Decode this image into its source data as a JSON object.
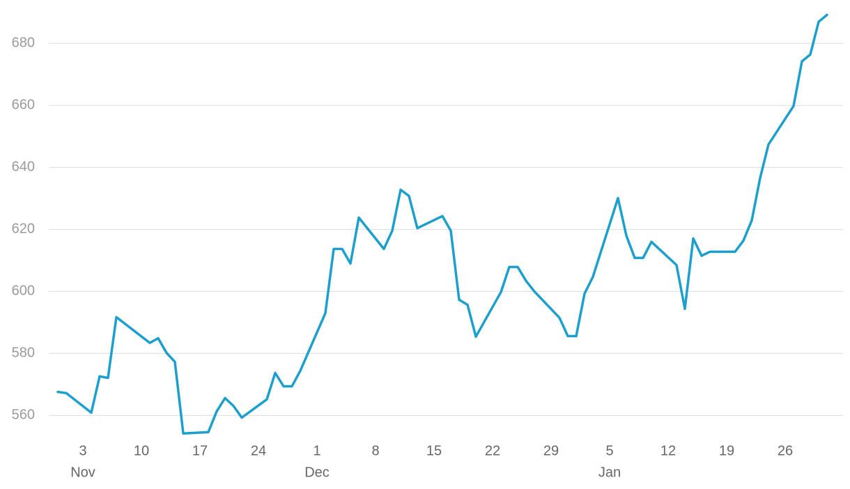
{
  "chart_data": {
    "type": "line",
    "x": [
      "Oct 31",
      "Nov 1",
      "Nov 4",
      "Nov 5",
      "Nov 6",
      "Nov 7",
      "Nov 11",
      "Nov 12",
      "Nov 13",
      "Nov 14",
      "Nov 15",
      "Nov 18",
      "Nov 19",
      "Nov 20",
      "Nov 21",
      "Nov 22",
      "Nov 25",
      "Nov 26",
      "Nov 27",
      "Nov 28",
      "Nov 29",
      "Dec 2",
      "Dec 3",
      "Dec 4",
      "Dec 5",
      "Dec 6",
      "Dec 9",
      "Dec 10",
      "Dec 11",
      "Dec 12",
      "Dec 13",
      "Dec 16",
      "Dec 17",
      "Dec 18",
      "Dec 19",
      "Dec 20",
      "Dec 23",
      "Dec 24",
      "Dec 25",
      "Dec 26",
      "Dec 27",
      "Dec 30",
      "Dec 31",
      "Jan 1",
      "Jan 2",
      "Jan 3",
      "Jan 6",
      "Jan 7",
      "Jan 8",
      "Jan 9",
      "Jan 10",
      "Jan 13",
      "Jan 14",
      "Jan 15",
      "Jan 16",
      "Jan 17",
      "Jan 20",
      "Jan 21",
      "Jan 22",
      "Jan 23",
      "Jan 24",
      "Jan 27",
      "Jan 28",
      "Jan 29",
      "Jan 30",
      "Jan 31"
    ],
    "values": [
      567.6,
      567.2,
      560.9,
      572.6,
      572.1,
      591.7,
      583.4,
      584.9,
      580.2,
      577.3,
      554.2,
      554.6,
      561.3,
      565.6,
      563.1,
      559.3,
      565.2,
      573.7,
      569.4,
      569.4,
      574.4,
      593.0,
      613.7,
      613.7,
      609.0,
      623.8,
      613.7,
      619.6,
      632.8,
      630.8,
      620.4,
      624.3,
      619.6,
      597.3,
      595.7,
      585.4,
      599.8,
      607.9,
      607.9,
      603.4,
      600.0,
      591.5,
      585.6,
      585.6,
      599.3,
      604.7,
      630.1,
      618.0,
      610.8,
      610.8,
      616.0,
      608.5,
      594.4,
      617.1,
      611.5,
      612.8,
      612.8,
      616.4,
      622.9,
      636.6,
      647.4,
      659.8,
      674.2,
      676.4,
      687.0,
      689.2
    ],
    "color": "#1c9fcc",
    "ylim": [
      552,
      694
    ],
    "yticks": [
      560,
      580,
      600,
      620,
      640,
      660,
      680
    ],
    "grid": true,
    "xticks": [
      {
        "value": "Nov 3",
        "label": "3"
      },
      {
        "value": "Nov 10",
        "label": "10"
      },
      {
        "value": "Nov 17",
        "label": "17"
      },
      {
        "value": "Nov 24",
        "label": "24"
      },
      {
        "value": "Dec 1",
        "label": "1"
      },
      {
        "value": "Dec 8",
        "label": "8"
      },
      {
        "value": "Dec 15",
        "label": "15"
      },
      {
        "value": "Dec 22",
        "label": "22"
      },
      {
        "value": "Dec 29",
        "label": "29"
      },
      {
        "value": "Jan 5",
        "label": "5"
      },
      {
        "value": "Jan 12",
        "label": "12"
      },
      {
        "value": "Jan 19",
        "label": "19"
      },
      {
        "value": "Jan 26",
        "label": "26"
      }
    ],
    "x_month_labels": [
      {
        "value": "Nov 3",
        "label": "Nov"
      },
      {
        "value": "Dec 1",
        "label": "Dec"
      },
      {
        "value": "Jan 5",
        "label": "Jan"
      }
    ]
  }
}
